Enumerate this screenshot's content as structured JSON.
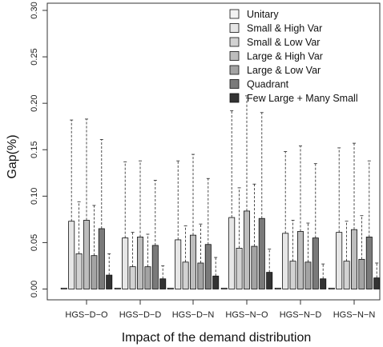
{
  "chart_data": {
    "type": "bar",
    "title": "",
    "xlabel": "Impact of the demand distribution",
    "ylabel": "Gap(%)",
    "ylim": [
      0,
      0.3
    ],
    "yticks": [
      0.0,
      0.05,
      0.1,
      0.15,
      0.2,
      0.25,
      0.3
    ],
    "ytick_labels": [
      "0.00",
      "0.05",
      "0.10",
      "0.15",
      "0.20",
      "0.25",
      "0.30"
    ],
    "categories": [
      "HGS−D−O",
      "HGS−D−D",
      "HGS−D−N",
      "HGS−N−O",
      "HGS−N−D",
      "HGS−N−N"
    ],
    "legend_position": "top-right",
    "error_bars": "dashed whiskers to an upper value",
    "series": [
      {
        "name": "Unitary",
        "color": "#f2f2f2",
        "values": [
          0.001,
          0.001,
          0.001,
          0.001,
          0.001,
          0.001
        ],
        "upper": [
          0.001,
          0.001,
          0.001,
          0.001,
          0.001,
          0.001
        ]
      },
      {
        "name": "Small & High Var",
        "color": "#e6e6e6",
        "values": [
          0.073,
          0.055,
          0.053,
          0.077,
          0.06,
          0.061
        ],
        "upper": [
          0.182,
          0.137,
          0.138,
          0.192,
          0.148,
          0.152
        ]
      },
      {
        "name": "Small & Low Var",
        "color": "#d2d2d2",
        "values": [
          0.038,
          0.024,
          0.029,
          0.044,
          0.03,
          0.03
        ],
        "upper": [
          0.094,
          0.061,
          0.068,
          0.109,
          0.074,
          0.073
        ]
      },
      {
        "name": "Large & High Var",
        "color": "#bdbdbd",
        "values": [
          0.074,
          0.056,
          0.058,
          0.084,
          0.062,
          0.064
        ],
        "upper": [
          0.183,
          0.138,
          0.145,
          0.208,
          0.154,
          0.157
        ]
      },
      {
        "name": "Large & Low Var",
        "color": "#a3a3a3",
        "values": [
          0.036,
          0.024,
          0.028,
          0.046,
          0.029,
          0.032
        ],
        "upper": [
          0.09,
          0.059,
          0.07,
          0.113,
          0.071,
          0.079
        ]
      },
      {
        "name": "Quadrant",
        "color": "#7a7a7a",
        "values": [
          0.065,
          0.047,
          0.048,
          0.076,
          0.055,
          0.056
        ],
        "upper": [
          0.161,
          0.117,
          0.119,
          0.19,
          0.135,
          0.138
        ]
      },
      {
        "name": "Few Large + Many Small",
        "color": "#333333",
        "values": [
          0.015,
          0.011,
          0.014,
          0.018,
          0.011,
          0.012
        ],
        "upper": [
          0.038,
          0.025,
          0.034,
          0.043,
          0.027,
          0.028
        ]
      }
    ]
  }
}
